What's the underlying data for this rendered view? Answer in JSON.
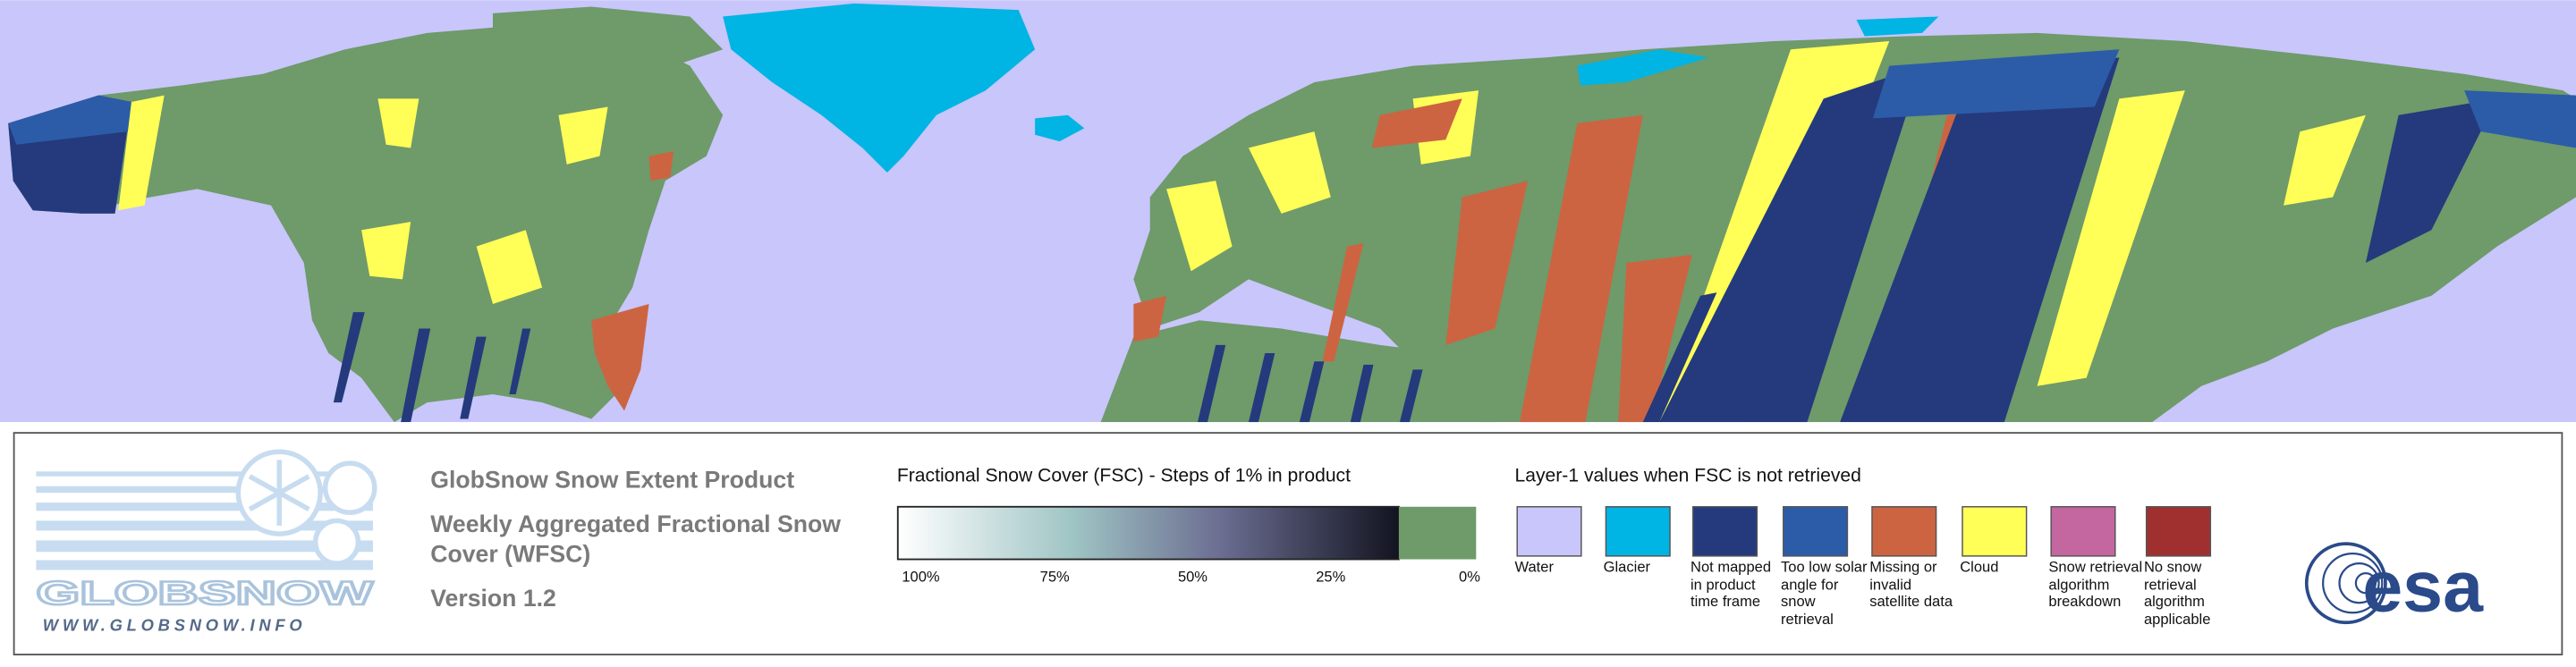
{
  "logo": {
    "name": "GLOBSNOW",
    "url": "WWW.GLOBSNOW.INFO"
  },
  "product": {
    "title": "GlobSnow Snow Extent Product",
    "subtitle": "Weekly Aggregated Fractional Snow Cover (WFSC)",
    "version": "Version 1.2"
  },
  "fsc_legend": {
    "title": "Fractional Snow Cover (FSC) - Steps of 1% in product",
    "ticks": [
      "100%",
      "75%",
      "50%",
      "25%",
      "0%"
    ],
    "snow_free_color": "#6f9a6a"
  },
  "layer1_legend": {
    "title": "Layer-1 values when FSC is not retrieved",
    "items": [
      {
        "label": "Water",
        "color": "#c8c6fb"
      },
      {
        "label": "Glacier",
        "color": "#00b4e4"
      },
      {
        "label": "Not mapped in product time frame",
        "color": "#243a7c"
      },
      {
        "label": "Too low solar angle for snow retrieval",
        "color": "#2c5ca8"
      },
      {
        "label": "Missing or invalid satellite data",
        "color": "#cc6442"
      },
      {
        "label": "Cloud",
        "color": "#ffff58"
      },
      {
        "label": "Snow retrieval algorithm breakdown",
        "color": "#c466a0"
      },
      {
        "label": "No snow retrieval algorithm applicable",
        "color": "#a03030"
      }
    ]
  },
  "agency": "esa"
}
